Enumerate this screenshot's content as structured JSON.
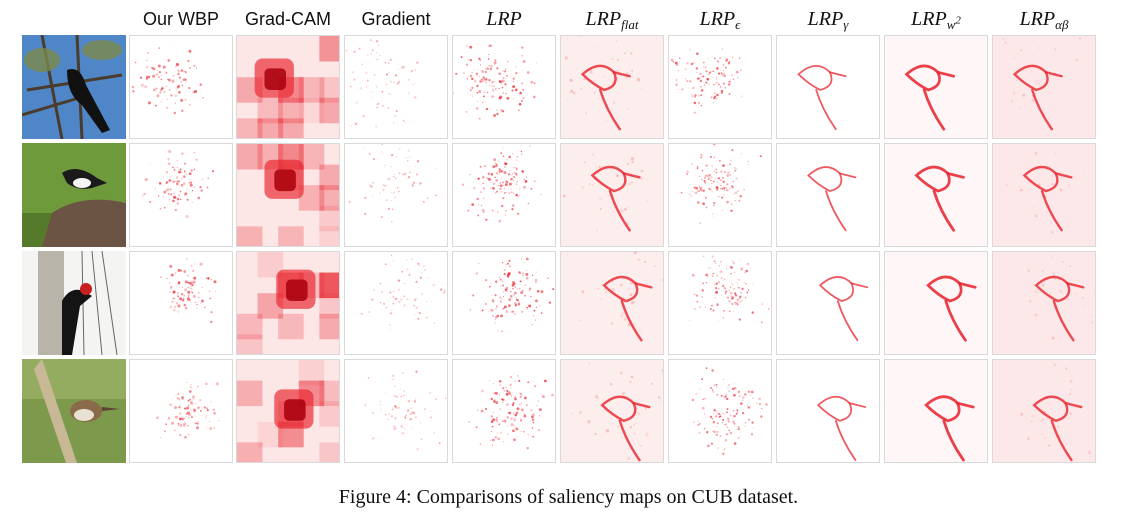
{
  "columns": {
    "wbp": "Our WBP",
    "gradcam": "Grad-CAM",
    "gradient": "Gradient",
    "lrp": "LRP",
    "lrp_flat_base": "LRP",
    "lrp_flat_sub": "flat",
    "lrp_eps_base": "LRP",
    "lrp_eps_sub": "ϵ",
    "lrp_gamma_base": "LRP",
    "lrp_gamma_sub": "γ",
    "lrp_w2_base": "LRP",
    "lrp_w2_sub": "w",
    "lrp_w2_sup": "2",
    "lrp_ab_base": "LRP",
    "lrp_ab_sub": "αβ"
  },
  "rows": [
    "Crow on branch",
    "Magpie on rock",
    "Woodpecker on pole",
    "Wren on stick"
  ],
  "caption": "Figure 4: Comparisons of saliency maps on CUB dataset.",
  "colors": {
    "heat": "#e8202a",
    "frame": "#d9d9d9"
  }
}
